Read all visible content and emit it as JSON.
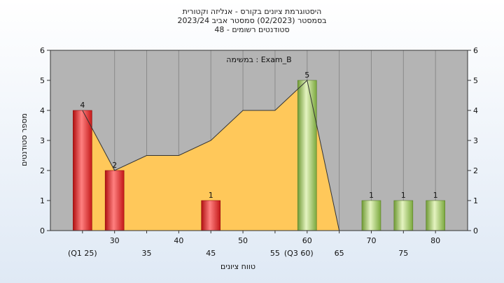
{
  "chart_data": {
    "type": "bar",
    "title_lines": [
      "היסטוגרמת ציונים בקורס - אנליזה וקטורית",
      "בסמסטר  (02/2023)  סמסטר אביב 2023/24",
      "סטודנטים רשומים - 48"
    ],
    "annotation": "במשימה : Exam_B",
    "xlabel": "טווח ציונים",
    "ylabel": "מספר סטודנטים",
    "ylim": [
      0,
      6
    ],
    "yticks": [
      0,
      1,
      2,
      3,
      4,
      5,
      6
    ],
    "x_ticks_top": [
      "30",
      "40",
      "50",
      "60",
      "70",
      "80"
    ],
    "x_ticks_bottom": [
      "(Q1 25)",
      "35",
      "45",
      "55",
      "(Q3 60)",
      "65",
      "75"
    ],
    "bars": [
      {
        "x": 25,
        "value": 4,
        "color": "red"
      },
      {
        "x": 30,
        "value": 2,
        "color": "red"
      },
      {
        "x": 45,
        "value": 1,
        "color": "red"
      },
      {
        "x": 60,
        "value": 5,
        "color": "green"
      },
      {
        "x": 70,
        "value": 1,
        "color": "green"
      },
      {
        "x": 75,
        "value": 1,
        "color": "green"
      },
      {
        "x": 80,
        "value": 1,
        "color": "green"
      }
    ],
    "area": {
      "x": [
        25,
        30,
        35,
        40,
        45,
        50,
        55,
        60,
        65
      ],
      "values": [
        4,
        2,
        2.5,
        2.5,
        3,
        4,
        4,
        5,
        0
      ]
    },
    "colors": {
      "plot_bg": "#b4b4b4",
      "area_fill": "#ffc85a",
      "red": "#e02020",
      "green": "#8fbf50"
    }
  }
}
